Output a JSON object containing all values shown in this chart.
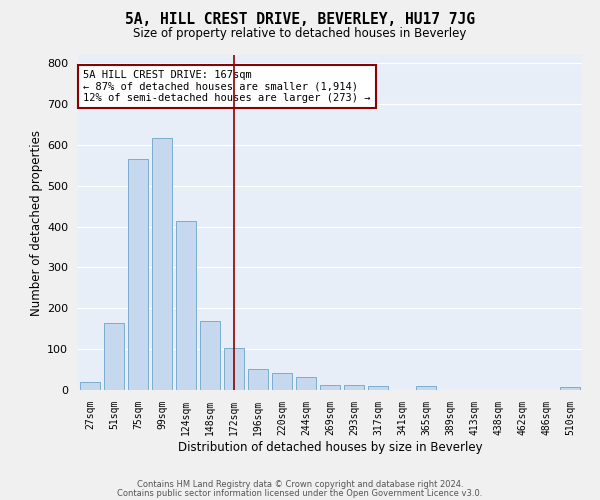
{
  "title": "5A, HILL CREST DRIVE, BEVERLEY, HU17 7JG",
  "subtitle": "Size of property relative to detached houses in Beverley",
  "xlabel": "Distribution of detached houses by size in Beverley",
  "ylabel": "Number of detached properties",
  "bins": [
    "27sqm",
    "51sqm",
    "75sqm",
    "99sqm",
    "124sqm",
    "148sqm",
    "172sqm",
    "196sqm",
    "220sqm",
    "244sqm",
    "269sqm",
    "293sqm",
    "317sqm",
    "341sqm",
    "365sqm",
    "389sqm",
    "413sqm",
    "438sqm",
    "462sqm",
    "486sqm",
    "510sqm"
  ],
  "values": [
    20,
    165,
    565,
    618,
    413,
    170,
    103,
    52,
    42,
    32,
    13,
    13,
    10,
    0,
    10,
    0,
    0,
    0,
    0,
    0,
    8
  ],
  "bar_color": "#c5d8ee",
  "bar_edge_color": "#7aadce",
  "bg_color": "#e8eef8",
  "grid_color": "#ffffff",
  "fig_bg_color": "#f0f0f0",
  "vline_color": "#8b0000",
  "annotation_text": "5A HILL CREST DRIVE: 167sqm\n← 87% of detached houses are smaller (1,914)\n12% of semi-detached houses are larger (273) →",
  "annotation_box_color": "#ffffff",
  "annotation_box_edge": "#8b0000",
  "ylim": [
    0,
    820
  ],
  "yticks": [
    0,
    100,
    200,
    300,
    400,
    500,
    600,
    700,
    800
  ],
  "footer_line1": "Contains HM Land Registry data © Crown copyright and database right 2024.",
  "footer_line2": "Contains public sector information licensed under the Open Government Licence v3.0."
}
